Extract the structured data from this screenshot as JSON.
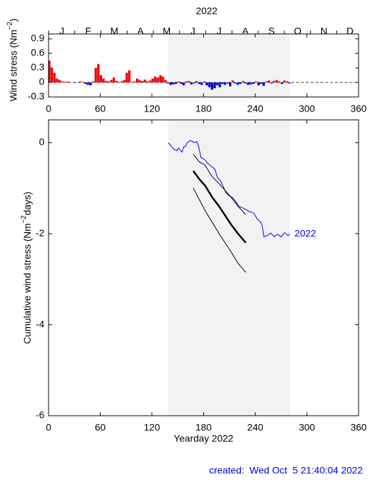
{
  "chart_data": [
    {
      "type": "bar",
      "title": "2022",
      "months": [
        "J",
        "F",
        "M",
        "A",
        "M",
        "J",
        "J",
        "A",
        "S",
        "O",
        "N",
        "D"
      ],
      "ylabel": [
        "Wind stress (Nm",
        "−2",
        ")"
      ],
      "x": [
        1,
        4,
        7,
        10,
        13,
        16,
        19,
        22,
        25,
        28,
        31,
        34,
        37,
        40,
        43,
        46,
        49,
        52,
        55,
        58,
        61,
        64,
        67,
        70,
        73,
        76,
        79,
        82,
        85,
        88,
        91,
        94,
        97,
        100,
        103,
        106,
        109,
        112,
        115,
        118,
        121,
        124,
        127,
        130,
        133,
        136,
        139,
        142,
        145,
        148,
        151,
        154,
        157,
        160,
        163,
        166,
        169,
        172,
        175,
        178,
        181,
        184,
        187,
        190,
        193,
        196,
        199,
        202,
        205,
        208,
        211,
        214,
        217,
        220,
        223,
        226,
        229,
        232,
        235,
        238,
        241,
        244,
        247,
        250,
        253,
        256,
        259,
        262,
        265,
        268,
        271,
        274,
        277,
        280
      ],
      "values": [
        0.45,
        0.3,
        0.2,
        0.08,
        0.05,
        0.02,
        0.01,
        0.02,
        0.01,
        0.0,
        -0.01,
        0.0,
        0.02,
        0.01,
        -0.03,
        -0.05,
        -0.06,
        0.02,
        0.3,
        0.38,
        0.15,
        0.08,
        0.03,
        0.02,
        0.05,
        0.1,
        0.03,
        0.01,
        0.02,
        0.05,
        0.2,
        0.25,
        0.01,
        0.02,
        0.08,
        0.05,
        0.03,
        0.06,
        0.02,
        0.04,
        0.08,
        0.12,
        0.1,
        0.15,
        0.12,
        0.05,
        -0.02,
        -0.05,
        -0.04,
        -0.03,
        0.02,
        -0.03,
        -0.06,
        0.02,
        0.03,
        -0.04,
        -0.02,
        0.03,
        -0.03,
        -0.05,
        0.02,
        -0.06,
        -0.1,
        -0.15,
        -0.12,
        -0.06,
        -0.1,
        -0.03,
        -0.05,
        -0.02,
        -0.08,
        0.04,
        -0.02,
        -0.05,
        -0.03,
        0.03,
        -0.02,
        -0.05,
        -0.04,
        -0.03,
        0.02,
        -0.06,
        -0.03,
        -0.07,
        0.02,
        0.04,
        -0.02,
        0.03,
        0.05,
        0.02,
        -0.03,
        0.04,
        0.02,
        -0.02
      ],
      "positive_color": "#ee0000",
      "negative_color": "#0000dd",
      "shade": [
        139,
        280
      ],
      "xlim": [
        0,
        360
      ],
      "xticks": [
        0,
        60,
        120,
        180,
        240,
        300,
        360
      ],
      "ylim": [
        -0.3,
        1.0
      ],
      "yticks": [
        -0.3,
        0,
        0.3,
        0.6,
        0.9
      ]
    },
    {
      "type": "line",
      "ylabel": [
        "Cumulative wind stress (Nm",
        "−2",
        "days)"
      ],
      "xlabel": "Yearday 2022",
      "shade": [
        139,
        280
      ],
      "series": [
        {
          "name": "2022",
          "color": "#0000dd",
          "width": 1,
          "x": [
            139,
            145,
            149,
            151,
            155,
            157,
            159,
            161,
            165,
            169,
            172,
            174,
            177,
            181,
            185,
            189,
            193,
            196,
            200,
            203,
            206,
            209,
            213,
            217,
            221,
            225,
            230,
            234,
            238,
            242,
            246,
            248,
            250,
            254,
            258,
            262,
            266,
            270,
            274,
            278,
            280
          ],
          "values": [
            0,
            -0.14,
            -0.18,
            -0.12,
            -0.21,
            -0.09,
            -0.09,
            0,
            0.05,
            0,
            0.02,
            -0.06,
            -0.33,
            -0.37,
            -0.46,
            -0.52,
            -0.58,
            -0.76,
            -0.85,
            -0.97,
            -1.1,
            -1.16,
            -1.2,
            -1.28,
            -1.4,
            -1.43,
            -1.48,
            -1.52,
            -1.54,
            -1.67,
            -1.74,
            -1.81,
            -2.07,
            -2.04,
            -1.99,
            -2.07,
            -2.01,
            -2.07,
            -1.98,
            -2.04,
            -2.01
          ]
        },
        {
          "color": "#000000",
          "width": 1,
          "x": [
            168,
            175,
            182,
            190,
            198,
            205,
            212,
            220,
            229
          ],
          "values": [
            -0.25,
            -0.42,
            -0.5,
            -0.75,
            -0.9,
            -1.05,
            -1.2,
            -1.4,
            -1.58
          ]
        },
        {
          "color": "#000000",
          "width": 2.5,
          "x": [
            168,
            175,
            182,
            190,
            198,
            205,
            212,
            220,
            229
          ],
          "values": [
            -0.62,
            -0.8,
            -0.95,
            -1.2,
            -1.4,
            -1.6,
            -1.8,
            -2.0,
            -2.2
          ]
        },
        {
          "color": "#000000",
          "width": 1,
          "x": [
            168,
            175,
            182,
            190,
            198,
            205,
            212,
            220,
            229
          ],
          "values": [
            -1.0,
            -1.25,
            -1.5,
            -1.75,
            -2.0,
            -2.2,
            -2.4,
            -2.65,
            -2.85
          ]
        }
      ],
      "xlim": [
        0,
        360
      ],
      "xticks": [
        0,
        60,
        120,
        180,
        240,
        300,
        360
      ],
      "ylim": [
        -6,
        0.5
      ],
      "yticks": [
        -6,
        -4,
        -2,
        0
      ]
    }
  ],
  "footer": "created:  Wed Oct  5 21:40:04 2022"
}
